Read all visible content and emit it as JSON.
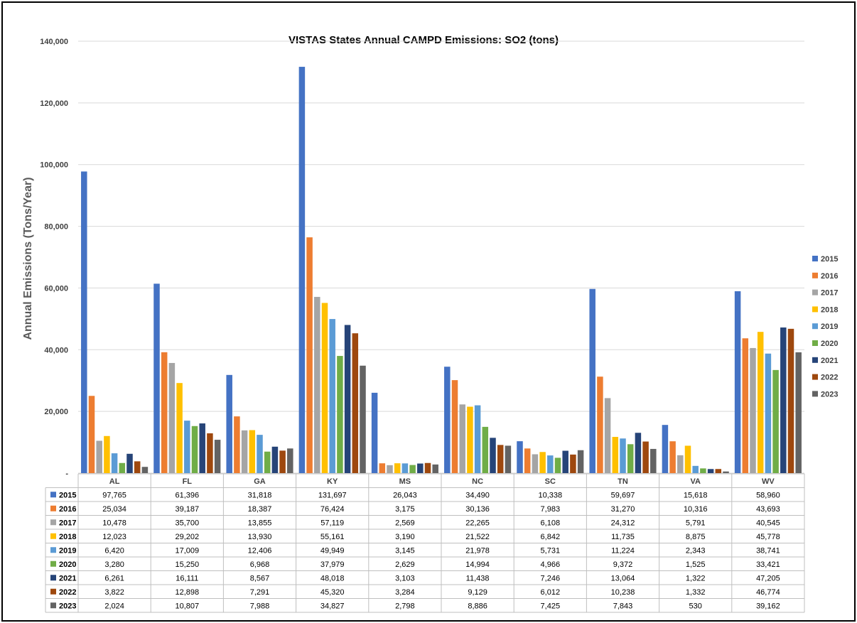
{
  "chart_data": {
    "type": "bar",
    "title": "VISTAS States Annual CAMPD Emissions: SO2 (tons)",
    "ylabel": "Annual Emissions (Tons/Year)",
    "xlabel": "",
    "ylim": [
      0,
      140000
    ],
    "yticks": [
      {
        "value": 0,
        "label": "-"
      },
      {
        "value": 20000,
        "label": "20,000"
      },
      {
        "value": 40000,
        "label": "40,000"
      },
      {
        "value": 60000,
        "label": "60,000"
      },
      {
        "value": 80000,
        "label": "80,000"
      },
      {
        "value": 100000,
        "label": "100,000"
      },
      {
        "value": 120000,
        "label": "120,000"
      },
      {
        "value": 140000,
        "label": "140,000"
      }
    ],
    "grid": true,
    "legend_position": "right",
    "categories": [
      "AL",
      "FL",
      "GA",
      "KY",
      "MS",
      "NC",
      "SC",
      "TN",
      "VA",
      "WV"
    ],
    "series": [
      {
        "name": "2015",
        "color": "#4472C4",
        "values": [
          97765,
          61396,
          31818,
          131697,
          26043,
          34490,
          10338,
          59697,
          15618,
          58960
        ],
        "labels": [
          "97,765",
          "61,396",
          "31,818",
          "131,697",
          "26,043",
          "34,490",
          "10,338",
          "59,697",
          "15,618",
          "58,960"
        ]
      },
      {
        "name": "2016",
        "color": "#ED7D31",
        "values": [
          25034,
          39187,
          18387,
          76424,
          3175,
          30136,
          7983,
          31270,
          10316,
          43693
        ],
        "labels": [
          "25,034",
          "39,187",
          "18,387",
          "76,424",
          "3,175",
          "30,136",
          "7,983",
          "31,270",
          "10,316",
          "43,693"
        ]
      },
      {
        "name": "2017",
        "color": "#A5A5A5",
        "values": [
          10478,
          35700,
          13855,
          57119,
          2569,
          22265,
          6108,
          24312,
          5791,
          40545
        ],
        "labels": [
          "10,478",
          "35,700",
          "13,855",
          "57,119",
          "2,569",
          "22,265",
          "6,108",
          "24,312",
          "5,791",
          "40,545"
        ]
      },
      {
        "name": "2018",
        "color": "#FFC000",
        "values": [
          12023,
          29202,
          13930,
          55161,
          3190,
          21522,
          6842,
          11735,
          8875,
          45778
        ],
        "labels": [
          "12,023",
          "29,202",
          "13,930",
          "55,161",
          "3,190",
          "21,522",
          "6,842",
          "11,735",
          "8,875",
          "45,778"
        ]
      },
      {
        "name": "2019",
        "color": "#5B9BD5",
        "values": [
          6420,
          17009,
          12406,
          49949,
          3145,
          21978,
          5731,
          11224,
          2343,
          38741
        ],
        "labels": [
          "6,420",
          "17,009",
          "12,406",
          "49,949",
          "3,145",
          "21,978",
          "5,731",
          "11,224",
          "2,343",
          "38,741"
        ]
      },
      {
        "name": "2020",
        "color": "#70AD47",
        "values": [
          3280,
          15250,
          6968,
          37979,
          2629,
          14994,
          4966,
          9372,
          1525,
          33421
        ],
        "labels": [
          "3,280",
          "15,250",
          "6,968",
          "37,979",
          "2,629",
          "14,994",
          "4,966",
          "9,372",
          "1,525",
          "33,421"
        ]
      },
      {
        "name": "2021",
        "color": "#264478",
        "values": [
          6261,
          16111,
          8567,
          48018,
          3103,
          11438,
          7246,
          13064,
          1322,
          47205
        ],
        "labels": [
          "6,261",
          "16,111",
          "8,567",
          "48,018",
          "3,103",
          "11,438",
          "7,246",
          "13,064",
          "1,322",
          "47,205"
        ]
      },
      {
        "name": "2022",
        "color": "#9E480E",
        "values": [
          3822,
          12898,
          7291,
          45320,
          3284,
          9129,
          6012,
          10238,
          1332,
          46774
        ],
        "labels": [
          "3,822",
          "12,898",
          "7,291",
          "45,320",
          "3,284",
          "9,129",
          "6,012",
          "10,238",
          "1,332",
          "46,774"
        ]
      },
      {
        "name": "2023",
        "color": "#636363",
        "values": [
          2024,
          10807,
          7988,
          34827,
          2798,
          8886,
          7425,
          7843,
          530,
          39162
        ],
        "labels": [
          "2,024",
          "10,807",
          "7,988",
          "34,827",
          "2,798",
          "8,886",
          "7,425",
          "7,843",
          "530",
          "39,162"
        ]
      }
    ]
  }
}
